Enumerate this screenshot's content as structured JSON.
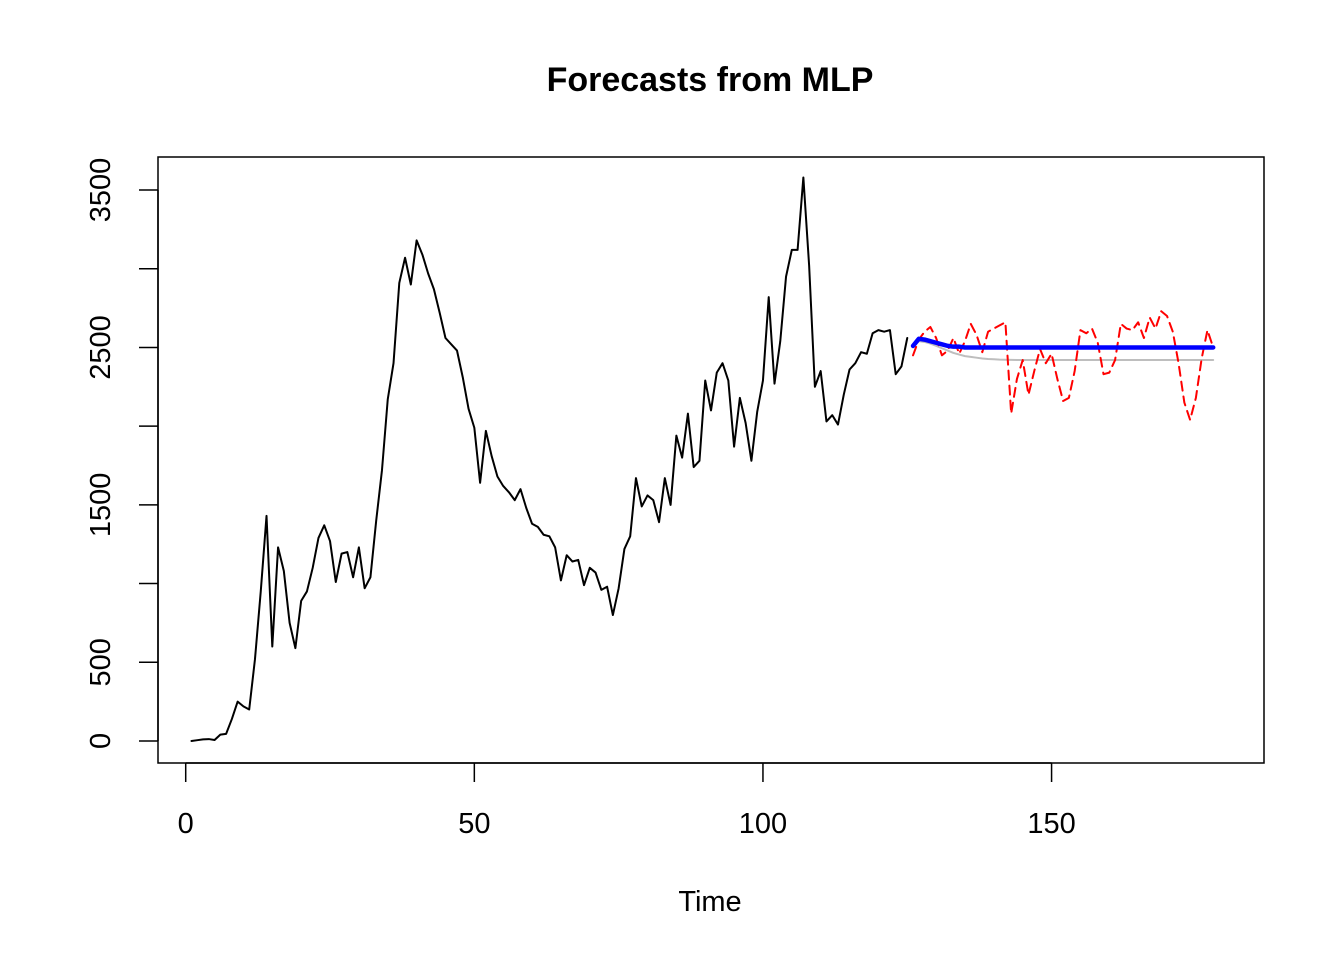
{
  "chart_data": {
    "type": "line",
    "title": "Forecasts from MLP",
    "xlabel": "Time",
    "ylabel": "",
    "xlim": [
      -4.8,
      186.8
    ],
    "ylim": [
      -140,
      3710
    ],
    "x_ticks": [
      0,
      50,
      100,
      150
    ],
    "x_tick_labels": [
      "0",
      "50",
      "100",
      "150"
    ],
    "y_ticks": [
      0,
      500,
      1500,
      2500,
      3500
    ],
    "y_tick_labels": [
      "0",
      "500",
      "1500",
      "2500",
      "3500"
    ],
    "y_minor_ticks": [
      1000,
      2000,
      3000
    ],
    "grid": false,
    "legend": "none",
    "series": [
      {
        "role": "observed",
        "color": "#000000",
        "line_style": "solid",
        "x_start": 1,
        "values": [
          0,
          5,
          10,
          12,
          6,
          40,
          45,
          140,
          250,
          220,
          200,
          520,
          950,
          1430,
          600,
          1230,
          1080,
          750,
          590,
          890,
          950,
          1100,
          1290,
          1370,
          1270,
          1010,
          1190,
          1200,
          1040,
          1230,
          970,
          1040,
          1400,
          1720,
          2170,
          2400,
          2910,
          3070,
          2900,
          3180,
          3090,
          2970,
          2870,
          2720,
          2560,
          2520,
          2480,
          2310,
          2110,
          1990,
          1640,
          1970,
          1810,
          1680,
          1620,
          1580,
          1530,
          1600,
          1480,
          1380,
          1360,
          1310,
          1300,
          1230,
          1020,
          1180,
          1140,
          1150,
          990,
          1100,
          1070,
          960,
          980,
          800,
          970,
          1220,
          1300,
          1670,
          1490,
          1560,
          1530,
          1390,
          1670,
          1500,
          1940,
          1800,
          2080,
          1740,
          1780,
          2290,
          2100,
          2340,
          2400,
          2290,
          1870,
          2180,
          2020,
          1780,
          2090,
          2290,
          2820,
          2270,
          2540,
          2950,
          3120,
          3120,
          3580,
          3020,
          2250,
          2350,
          2030,
          2070,
          2010,
          2200,
          2360,
          2400,
          2470,
          2460,
          2590,
          2610,
          2600,
          2610,
          2330,
          2380,
          2560
        ]
      },
      {
        "role": "forecast-gray",
        "color": "#bebebe",
        "line_style": "solid",
        "x_start": 126,
        "values": [
          2500,
          2540,
          2535,
          2525,
          2510,
          2495,
          2480,
          2465,
          2455,
          2445,
          2440,
          2435,
          2430,
          2427,
          2425,
          2423,
          2422,
          2421,
          2420,
          2420,
          2420,
          2420,
          2420,
          2420,
          2420,
          2420,
          2420,
          2420,
          2420,
          2420,
          2420,
          2420,
          2420,
          2420,
          2420,
          2420,
          2420,
          2420,
          2420,
          2420,
          2420,
          2420,
          2420,
          2420,
          2420,
          2420,
          2420,
          2420,
          2420,
          2420,
          2420,
          2420,
          2420
        ]
      },
      {
        "role": "forecast-red-dashed",
        "color": "#ff0000",
        "line_style": "dashed",
        "x_start": 126,
        "values": [
          2450,
          2550,
          2600,
          2630,
          2560,
          2450,
          2480,
          2560,
          2460,
          2540,
          2650,
          2580,
          2470,
          2600,
          2620,
          2640,
          2660,
          2080,
          2300,
          2420,
          2200,
          2350,
          2490,
          2400,
          2460,
          2300,
          2160,
          2180,
          2350,
          2610,
          2590,
          2620,
          2530,
          2330,
          2340,
          2420,
          2650,
          2620,
          2610,
          2660,
          2560,
          2690,
          2620,
          2730,
          2700,
          2600,
          2400,
          2150,
          2040,
          2180,
          2430,
          2610,
          2500
        ]
      },
      {
        "role": "forecast-blue",
        "color": "#0000ff",
        "line_style": "solid",
        "x_start": 126,
        "values": [
          2510,
          2555,
          2550,
          2540,
          2530,
          2520,
          2510,
          2505,
          2505,
          2500,
          2500,
          2500,
          2500,
          2500,
          2500,
          2500,
          2500,
          2500,
          2500,
          2500,
          2500,
          2500,
          2500,
          2500,
          2500,
          2500,
          2500,
          2500,
          2500,
          2500,
          2500,
          2500,
          2500,
          2500,
          2500,
          2500,
          2500,
          2500,
          2500,
          2500,
          2500,
          2500,
          2500,
          2500,
          2500,
          2500,
          2500,
          2500,
          2500,
          2500,
          2500,
          2500,
          2500
        ]
      }
    ]
  }
}
